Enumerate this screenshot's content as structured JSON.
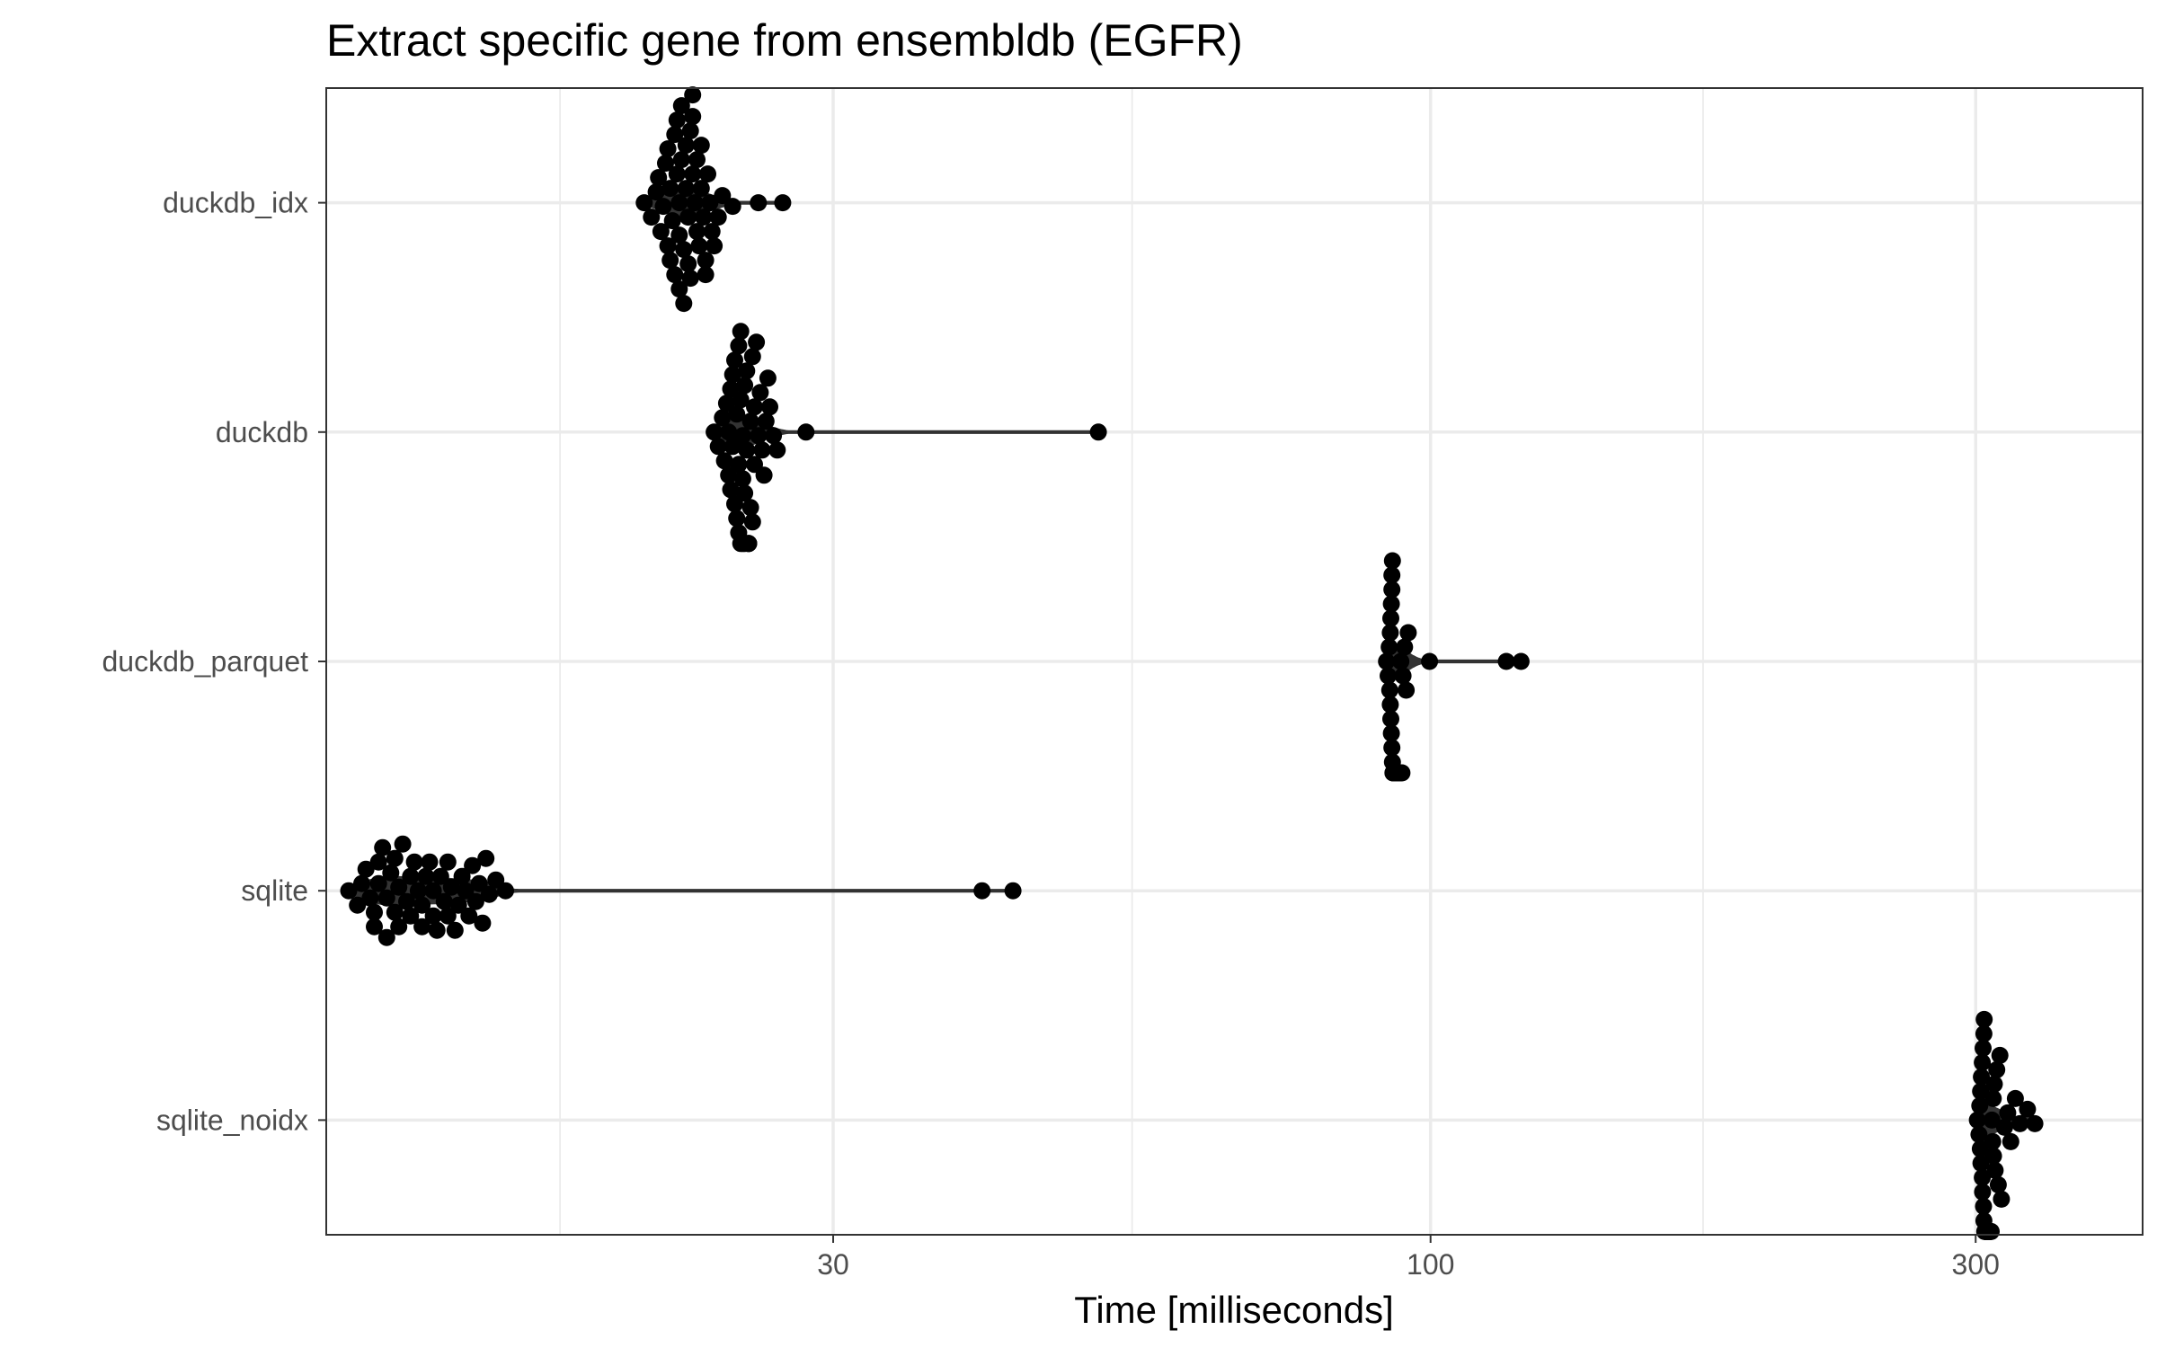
{
  "chart_data": {
    "type": "scatter",
    "title": "Extract specific gene from ensembldb (EGFR)",
    "xlabel": "Time [milliseconds]",
    "ylabel": "",
    "x_scale": "log10",
    "xlim": [
      10.8,
      420
    ],
    "x_ticks": [
      {
        "value": 30,
        "label": "30"
      },
      {
        "value": 100,
        "label": "100"
      },
      {
        "value": 300,
        "label": "300"
      }
    ],
    "x_minor_ticks": [
      17.3,
      54.8,
      173.2
    ],
    "grid": true,
    "legend": "none",
    "categories": [
      "duckdb_idx",
      "duckdb",
      "duckdb_parquet",
      "sqlite",
      "sqlite_noidx"
    ],
    "series": [
      {
        "category": "duckdb_idx",
        "values": [
          20.5,
          20.8,
          21.0,
          21.2,
          21.3,
          21.4,
          21.5,
          21.5,
          21.6,
          21.7,
          21.8,
          21.8,
          21.9,
          21.9,
          22.0,
          22.0,
          22.1,
          22.1,
          22.2,
          22.2,
          22.3,
          22.3,
          22.4,
          22.4,
          22.5,
          22.5,
          22.6,
          22.6,
          22.7,
          22.8,
          22.8,
          22.9,
          23.0,
          23.0,
          23.1,
          23.2,
          23.3,
          23.4,
          23.5,
          23.6,
          23.8,
          24.0,
          24.5,
          25.8,
          27.1,
          21.1,
          22.6,
          23.2,
          22.0,
          21.6
        ]
      },
      {
        "category": "duckdb",
        "values": [
          23.6,
          23.8,
          24.0,
          24.1,
          24.2,
          24.3,
          24.3,
          24.4,
          24.5,
          24.5,
          24.6,
          24.6,
          24.7,
          24.7,
          24.8,
          24.8,
          24.9,
          24.9,
          25.0,
          25.0,
          25.1,
          25.1,
          25.2,
          25.2,
          25.3,
          25.3,
          25.4,
          25.5,
          25.5,
          25.6,
          25.7,
          25.8,
          25.9,
          26.0,
          26.1,
          26.2,
          26.4,
          26.6,
          26.8,
          28.4,
          51.2,
          24.8,
          25.3,
          25.6,
          24.4,
          25.0,
          26.3,
          24.9,
          25.1,
          25.4
        ]
      },
      {
        "category": "duckdb_parquet",
        "values": [
          91.5,
          91.8,
          92.0,
          92.1,
          92.2,
          92.3,
          92.3,
          92.4,
          92.4,
          92.5,
          92.5,
          92.6,
          92.6,
          92.7,
          92.7,
          92.8,
          92.8,
          92.9,
          92.9,
          93.0,
          93.0,
          93.1,
          93.1,
          93.2,
          93.2,
          93.3,
          93.3,
          93.4,
          93.5,
          93.6,
          93.7,
          93.8,
          93.9,
          94.0,
          94.2,
          94.4,
          94.6,
          94.9,
          95.2,
          95.6,
          99.8,
          116.5,
          120.0,
          92.5,
          93.1,
          92.8,
          93.6,
          92.2,
          93.3,
          94.1
        ]
      },
      {
        "category": "sqlite",
        "values": [
          11.3,
          11.5,
          11.6,
          11.7,
          11.8,
          11.9,
          11.9,
          12.0,
          12.1,
          12.2,
          12.2,
          12.3,
          12.4,
          12.5,
          12.5,
          12.6,
          12.7,
          12.8,
          12.8,
          12.9,
          13.0,
          13.1,
          13.2,
          13.3,
          13.4,
          13.4,
          13.5,
          13.6,
          13.7,
          13.8,
          13.9,
          14.0,
          14.1,
          14.2,
          14.3,
          14.4,
          14.5,
          14.6,
          14.7,
          14.8,
          15.0,
          15.2,
          15.5,
          40.5,
          43.1,
          12.4,
          13.1,
          13.8,
          12.0,
          14.9
        ]
      },
      {
        "category": "sqlite_noidx",
        "values": [
          301.0,
          302.0,
          302.5,
          303.0,
          303.5,
          304.0,
          304.0,
          304.5,
          305.0,
          305.0,
          305.5,
          306.0,
          306.0,
          306.5,
          307.0,
          307.0,
          307.5,
          308.0,
          308.5,
          309.0,
          309.5,
          310.0,
          310.5,
          311.0,
          312.0,
          313.0,
          314.0,
          315.0,
          316.0,
          318.0,
          320.0,
          322.0,
          325.0,
          328.0,
          333.0,
          338.0,
          304.2,
          305.8,
          306.8,
          307.8,
          303.2,
          309.2,
          305.2,
          306.3,
          310.8,
          304.8,
          308.2,
          302.8,
          311.5,
          307.3
        ]
      }
    ]
  }
}
